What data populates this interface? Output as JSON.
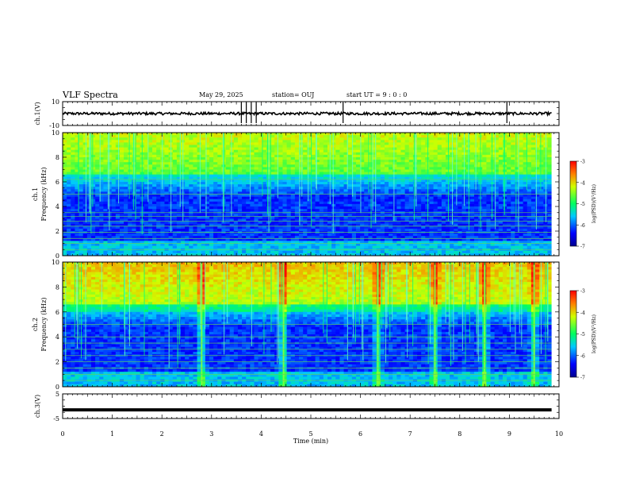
{
  "header": {
    "title": "VLF Spectra",
    "date": "May 29, 2025",
    "station": "station= OUJ",
    "start": "start  UT =   9 : 0  : 0"
  },
  "chart_data": [
    {
      "type": "line",
      "panel": "ch1-waveform",
      "ylabel": "ch.1(V)",
      "ylim": [
        -10,
        10
      ],
      "y_tick_labels": [
        "10",
        "-10"
      ],
      "baseline": 0,
      "x_range_min": [
        0,
        9.85
      ],
      "spikes_at_min": [
        3.6,
        3.7,
        3.8,
        3.9,
        5.65,
        8.95
      ]
    },
    {
      "type": "heatmap",
      "panel": "ch1-spectrogram",
      "ylabel": "ch.1\nFrequency (kHz)",
      "ylabel_lines": [
        "ch.1",
        "Frequency (kHz)"
      ],
      "ylim": [
        0,
        10
      ],
      "y_ticks": [
        0,
        2,
        4,
        6,
        8,
        10
      ],
      "x_range_min": [
        0,
        9.85
      ],
      "colorbar": {
        "label": "log(PSD)(V²/Hz)",
        "range": [
          -7,
          -3
        ],
        "ticks": [
          -3,
          -4,
          -5,
          -6,
          -7
        ]
      },
      "horizontal_lines_khz": [
        0.5,
        1.0,
        1.4,
        1.9,
        2.4,
        2.8,
        3.2,
        3.5,
        5.0,
        6.2
      ]
    },
    {
      "type": "heatmap",
      "panel": "ch2-spectrogram",
      "ylabel": "ch.2\nFrequency (kHz)",
      "ylabel_lines": [
        "ch.2",
        "Frequency (kHz)"
      ],
      "ylim": [
        0,
        10
      ],
      "y_ticks": [
        0,
        2,
        4,
        6,
        8,
        10
      ],
      "x_range_min": [
        0,
        9.85
      ],
      "colorbar": {
        "label": "log(PSD)(V²/Hz)",
        "range": [
          -7,
          -3
        ],
        "ticks": [
          -3,
          -4,
          -5,
          -6,
          -7
        ]
      },
      "strong_bursts_min": [
        2.8,
        4.45,
        6.35,
        7.5,
        8.5,
        9.5
      ]
    },
    {
      "type": "line",
      "panel": "ch3-waveform",
      "ylabel": "ch.3(V)",
      "ylim": [
        -5,
        5
      ],
      "y_tick_labels": [
        "5",
        "-5"
      ],
      "value": -1.5,
      "x_range_min": [
        0,
        9.85
      ]
    }
  ],
  "x_axis": {
    "label": "Time  (min)",
    "range": [
      0,
      10
    ],
    "ticks": [
      0,
      1,
      2,
      3,
      4,
      5,
      6,
      7,
      8,
      9,
      10
    ]
  },
  "colors": {
    "colormap": [
      "#00008f",
      "#0000ff",
      "#00ffff",
      "#00ff00",
      "#ffff00",
      "#ff8000",
      "#ff0000"
    ],
    "trace": "#000000"
  }
}
